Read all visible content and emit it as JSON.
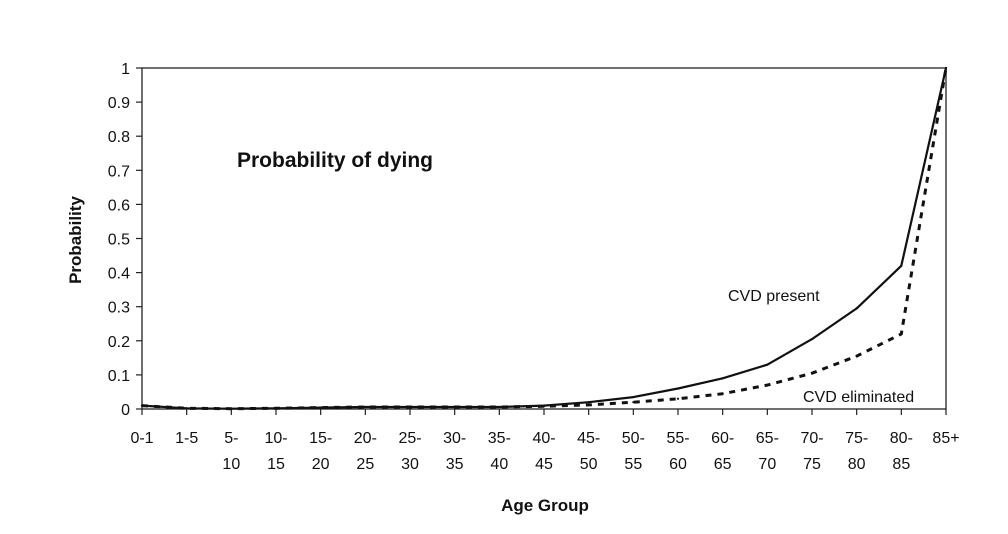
{
  "chart_data": {
    "type": "line",
    "title": "Probability of dying",
    "xlabel": "Age Group",
    "ylabel": "Probability",
    "ylim": [
      0,
      1
    ],
    "yticks": [
      "0",
      "0.1",
      "0.2",
      "0.3",
      "0.4",
      "0.5",
      "0.6",
      "0.7",
      "0.8",
      "0.9",
      "1"
    ],
    "categories": [
      "0-1",
      "1-5",
      "5-10",
      "10-15",
      "15-20",
      "20-25",
      "25-30",
      "30-35",
      "35-40",
      "40-45",
      "45-50",
      "50-55",
      "55-60",
      "60-65",
      "65-70",
      "70-75",
      "75-80",
      "80-85",
      "85+"
    ],
    "category_label_lines": [
      [
        "0-1",
        ""
      ],
      [
        "1-5",
        ""
      ],
      [
        "5-",
        "10"
      ],
      [
        "10-",
        "15"
      ],
      [
        "15-",
        "20"
      ],
      [
        "20-",
        "25"
      ],
      [
        "25-",
        "30"
      ],
      [
        "30-",
        "35"
      ],
      [
        "35-",
        "40"
      ],
      [
        "40-",
        "45"
      ],
      [
        "45-",
        "50"
      ],
      [
        "50-",
        "55"
      ],
      [
        "55-",
        "60"
      ],
      [
        "60-",
        "65"
      ],
      [
        "65-",
        "70"
      ],
      [
        "70-",
        "75"
      ],
      [
        "75-",
        "80"
      ],
      [
        "80-",
        "85"
      ],
      [
        "85+",
        ""
      ]
    ],
    "grid": false,
    "series": [
      {
        "name": "CVD present",
        "style": "solid",
        "values": [
          0.01,
          0.002,
          0.001,
          0.002,
          0.004,
          0.006,
          0.006,
          0.006,
          0.006,
          0.01,
          0.02,
          0.035,
          0.06,
          0.09,
          0.13,
          0.205,
          0.295,
          0.42,
          1.0
        ]
      },
      {
        "name": "CVD eliminated",
        "style": "dashed",
        "values": [
          0.01,
          0.002,
          0.001,
          0.002,
          0.004,
          0.006,
          0.006,
          0.006,
          0.006,
          0.008,
          0.012,
          0.02,
          0.03,
          0.045,
          0.07,
          0.105,
          0.155,
          0.22,
          1.0
        ]
      }
    ],
    "annotations": [
      {
        "text": "CVD present",
        "series": 0
      },
      {
        "text": "CVD eliminated",
        "series": 1
      }
    ]
  }
}
